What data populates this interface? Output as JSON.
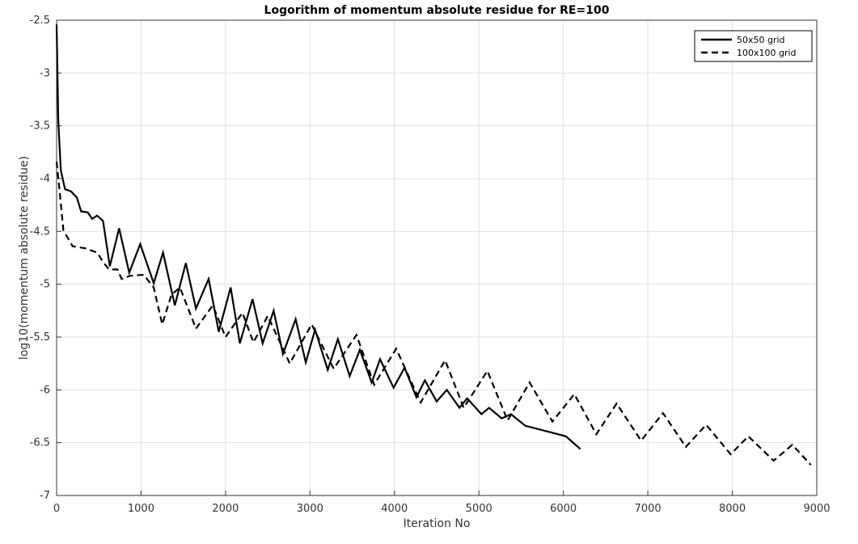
{
  "chart_data": {
    "type": "line",
    "title": "Logorithm of momentum absolute residue for RE=100",
    "x_label": "Iteration No",
    "y_label": "log10(momentum absolute residue)",
    "xlim": [
      0,
      9000
    ],
    "xticks": [
      0,
      1000,
      2000,
      3000,
      4000,
      5000,
      6000,
      7000,
      8000,
      9000
    ],
    "ylim": [
      -7,
      -2.5
    ],
    "yticks": [
      -7,
      -6.5,
      -6,
      -5.5,
      -5,
      -4.5,
      -4,
      -3.5,
      -3,
      -2.5
    ],
    "grid": true,
    "legend": "top-right",
    "series": [
      {
        "name": "50x50 grid",
        "color": "#000000",
        "dash": "solid",
        "x": [
          0,
          20,
          50,
          100,
          170,
          240,
          290,
          370,
          420,
          480,
          550,
          630,
          740,
          860,
          990,
          1150,
          1260,
          1400,
          1530,
          1650,
          1800,
          1920,
          2060,
          2170,
          2320,
          2440,
          2570,
          2680,
          2830,
          2950,
          3060,
          3210,
          3330,
          3470,
          3590,
          3730,
          3830,
          3990,
          4120,
          4260,
          4360,
          4500,
          4620,
          4770,
          4860,
          5030,
          5120,
          5270,
          5380,
          5550,
          5840,
          6030,
          6200
        ],
        "values": [
          -2.54,
          -3.46,
          -3.92,
          -4.1,
          -4.12,
          -4.18,
          -4.31,
          -4.32,
          -4.38,
          -4.35,
          -4.4,
          -4.83,
          -4.47,
          -4.89,
          -4.62,
          -4.99,
          -4.7,
          -5.2,
          -4.8,
          -5.23,
          -4.95,
          -5.45,
          -5.03,
          -5.56,
          -5.14,
          -5.56,
          -5.25,
          -5.66,
          -5.33,
          -5.74,
          -5.43,
          -5.81,
          -5.52,
          -5.87,
          -5.62,
          -5.93,
          -5.71,
          -5.98,
          -5.79,
          -6.07,
          -5.91,
          -6.11,
          -6.0,
          -6.17,
          -6.08,
          -6.23,
          -6.17,
          -6.27,
          -6.23,
          -6.34,
          -6.4,
          -6.44,
          -6.56
        ]
      },
      {
        "name": "100x100 grid",
        "color": "#000000",
        "dash": "dashed",
        "x": [
          0,
          30,
          80,
          190,
          340,
          480,
          560,
          620,
          720,
          770,
          870,
          1030,
          1150,
          1250,
          1360,
          1460,
          1650,
          1850,
          2000,
          2200,
          2330,
          2500,
          2760,
          3020,
          3280,
          3550,
          3760,
          4020,
          4310,
          4600,
          4820,
          5100,
          5340,
          5600,
          5870,
          6130,
          6390,
          6630,
          6920,
          7180,
          7450,
          7690,
          7980,
          8190,
          8490,
          8710,
          8930
        ],
        "values": [
          -3.84,
          -4.07,
          -4.49,
          -4.64,
          -4.66,
          -4.7,
          -4.8,
          -4.86,
          -4.86,
          -4.95,
          -4.92,
          -4.91,
          -5.03,
          -5.38,
          -5.1,
          -5.03,
          -5.42,
          -5.2,
          -5.5,
          -5.27,
          -5.55,
          -5.3,
          -5.75,
          -5.38,
          -5.8,
          -5.48,
          -5.95,
          -5.61,
          -6.12,
          -5.72,
          -6.17,
          -5.82,
          -6.29,
          -5.93,
          -6.3,
          -6.04,
          -6.42,
          -6.13,
          -6.48,
          -6.22,
          -6.54,
          -6.33,
          -6.61,
          -6.44,
          -6.67,
          -6.52,
          -6.71
        ]
      }
    ]
  }
}
